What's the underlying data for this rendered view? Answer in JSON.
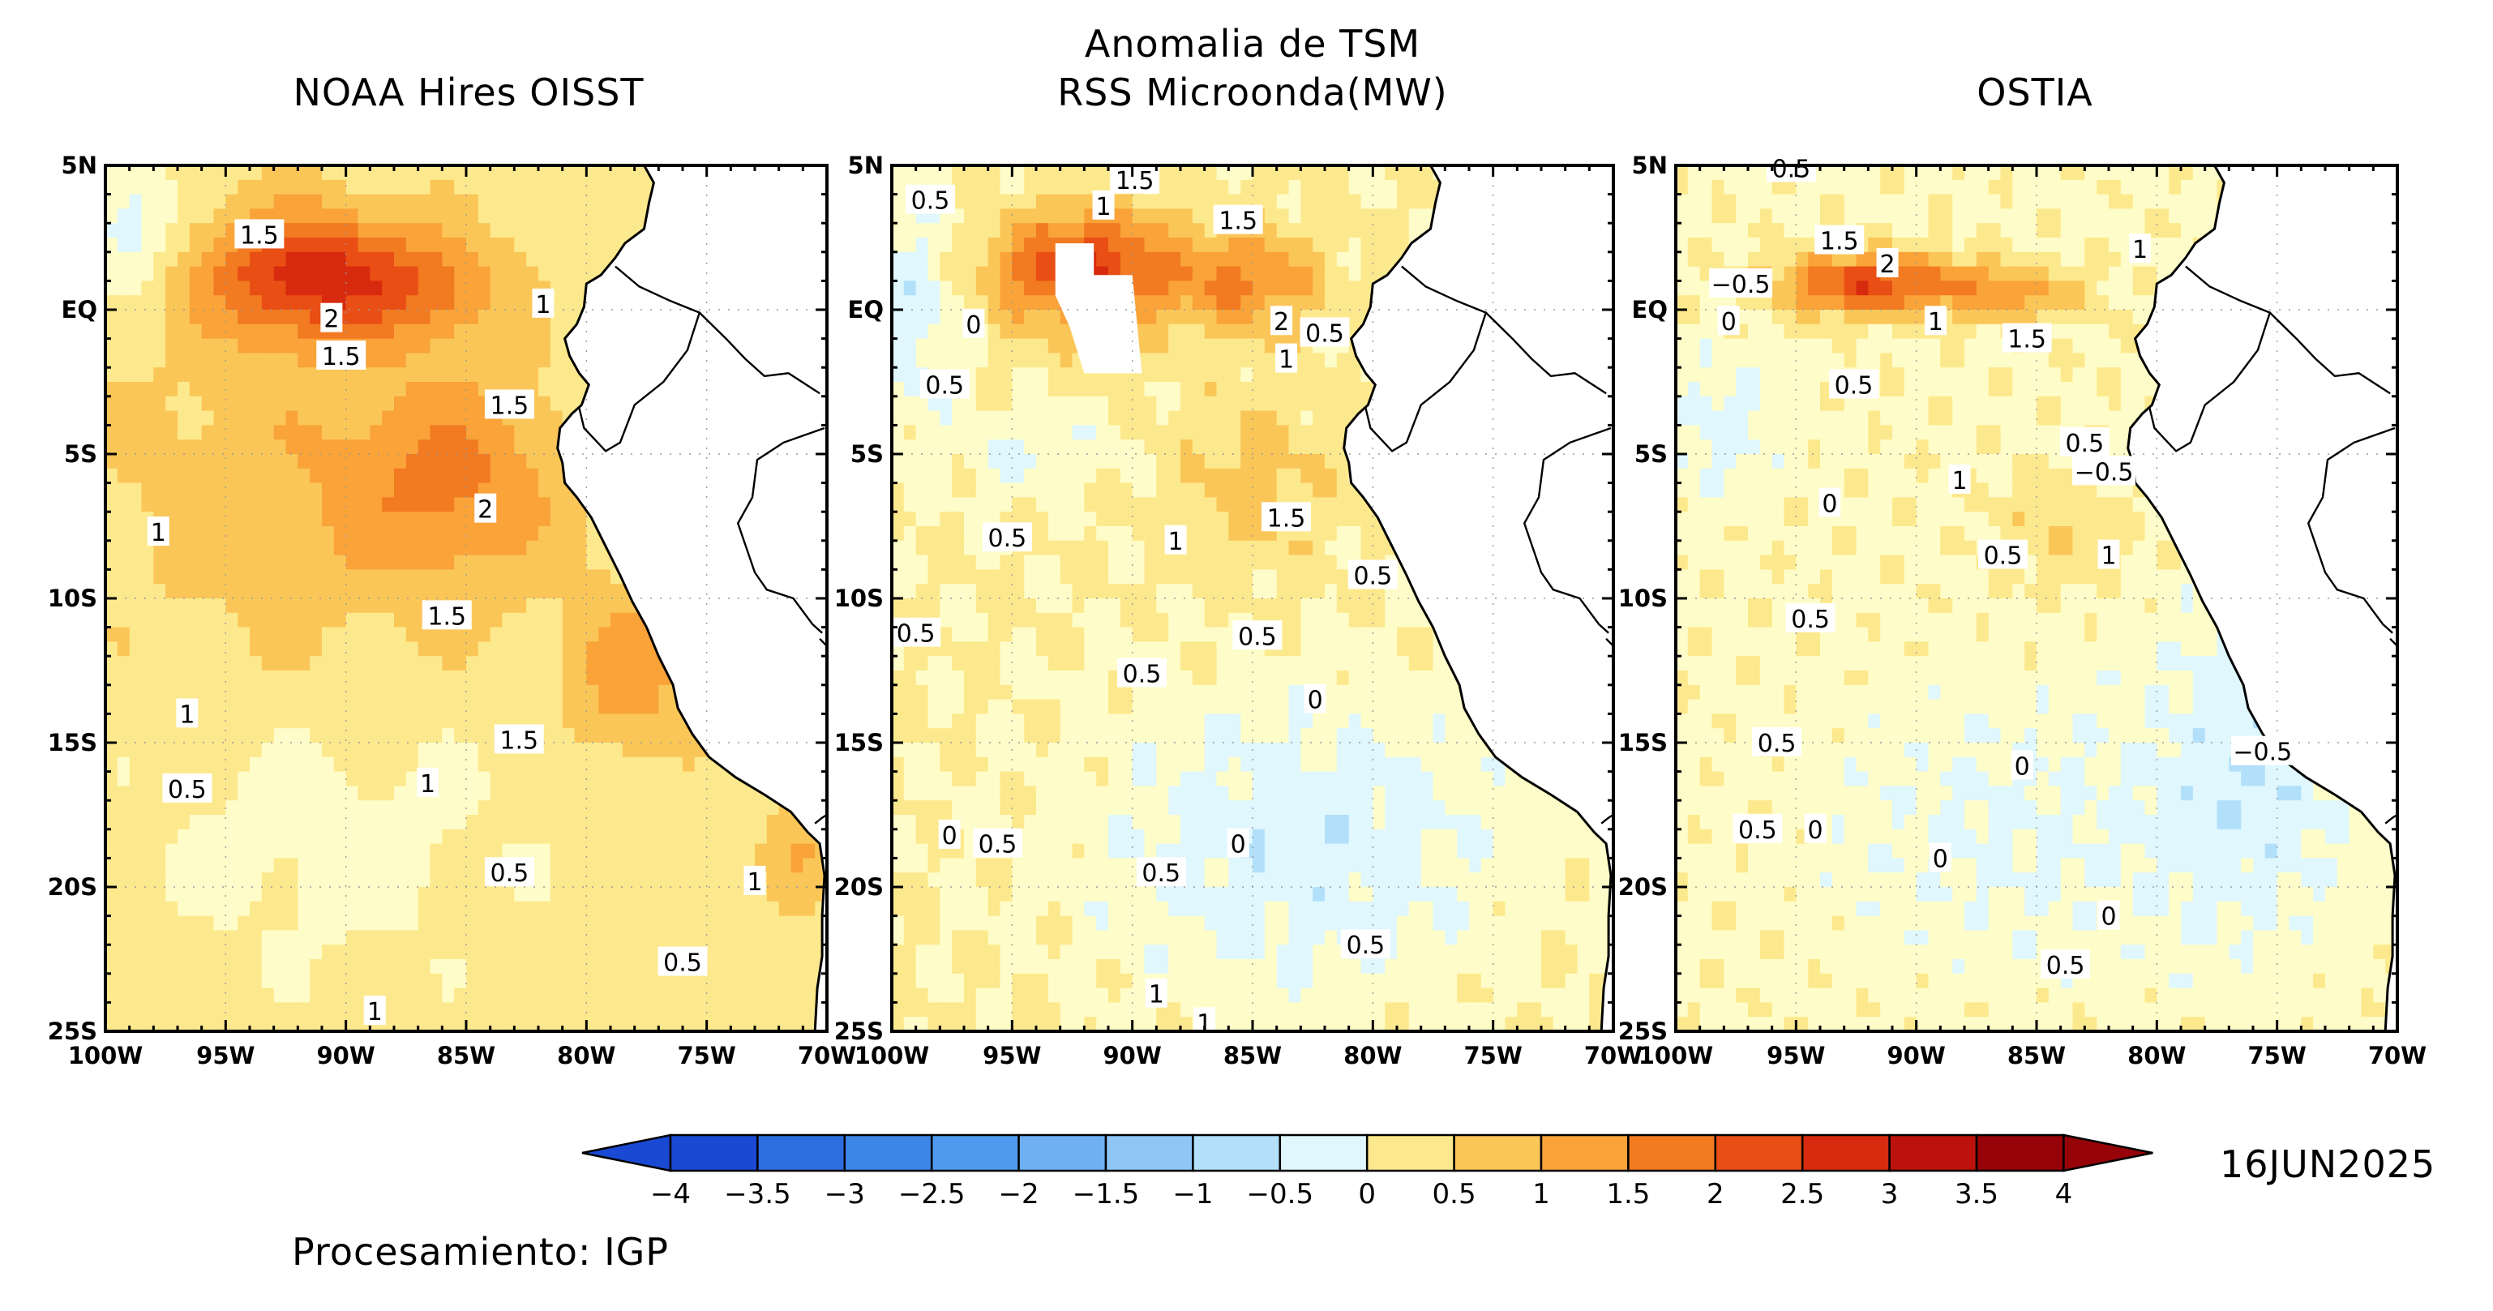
{
  "figure": {
    "main_title": "Anomalia de TSM",
    "date": "16JUN2025",
    "credit": "Procesamiento: IGP",
    "lat_ticks": [
      "5N",
      "EQ",
      "5S",
      "10S",
      "15S",
      "20S",
      "25S"
    ],
    "lon_ticks": [
      "100W",
      "95W",
      "90W",
      "85W",
      "80W",
      "75W",
      "70W"
    ]
  },
  "panels": [
    {
      "title": "NOAA Hires OISST",
      "labels": [
        {
          "t": "1.5",
          "lon": -93.6,
          "lat": 2.6
        },
        {
          "t": "2",
          "lon": -90.6,
          "lat": -0.3
        },
        {
          "t": "1.5",
          "lon": -90.2,
          "lat": -1.6
        },
        {
          "t": "1",
          "lon": -81.8,
          "lat": 0.2
        },
        {
          "t": "1.5",
          "lon": -83.2,
          "lat": -3.3
        },
        {
          "t": "2",
          "lon": -84.2,
          "lat": -6.9
        },
        {
          "t": "1",
          "lon": -97.8,
          "lat": -7.7
        },
        {
          "t": "1.5",
          "lon": -85.8,
          "lat": -10.6
        },
        {
          "t": "1",
          "lon": -96.6,
          "lat": -14.0
        },
        {
          "t": "1.5",
          "lon": -82.8,
          "lat": -14.9
        },
        {
          "t": "0.5",
          "lon": -96.6,
          "lat": -16.6
        },
        {
          "t": "1",
          "lon": -86.6,
          "lat": -16.4
        },
        {
          "t": "0.5",
          "lon": -83.2,
          "lat": -19.5
        },
        {
          "t": "1",
          "lon": -73.0,
          "lat": -19.8
        },
        {
          "t": "0.5",
          "lon": -76.0,
          "lat": -22.6
        },
        {
          "t": "1",
          "lon": -88.8,
          "lat": -24.3
        }
      ]
    },
    {
      "title": "RSS Microonda(MW)",
      "labels": [
        {
          "t": "1.5",
          "lon": -89.9,
          "lat": 4.5
        },
        {
          "t": "0.5",
          "lon": -98.4,
          "lat": 3.8
        },
        {
          "t": "1",
          "lon": -91.2,
          "lat": 3.6
        },
        {
          "t": "1.5",
          "lon": -85.6,
          "lat": 3.1
        },
        {
          "t": "0",
          "lon": -96.6,
          "lat": -0.5
        },
        {
          "t": "2",
          "lon": -83.8,
          "lat": -0.4
        },
        {
          "t": "0.5",
          "lon": -82.0,
          "lat": -0.8
        },
        {
          "t": "1",
          "lon": -83.6,
          "lat": -1.7
        },
        {
          "t": "0.5",
          "lon": -97.8,
          "lat": -2.6
        },
        {
          "t": "1.5",
          "lon": -83.6,
          "lat": -7.2
        },
        {
          "t": "0.5",
          "lon": -95.2,
          "lat": -7.9
        },
        {
          "t": "1",
          "lon": -88.2,
          "lat": -8.0
        },
        {
          "t": "0.5",
          "lon": -80.0,
          "lat": -9.2
        },
        {
          "t": "0.5",
          "lon": -99.0,
          "lat": -11.2
        },
        {
          "t": "0.5",
          "lon": -84.8,
          "lat": -11.3
        },
        {
          "t": "0.5",
          "lon": -89.6,
          "lat": -12.6
        },
        {
          "t": "0",
          "lon": -82.4,
          "lat": -13.5
        },
        {
          "t": "0",
          "lon": -97.6,
          "lat": -18.2
        },
        {
          "t": "0.5",
          "lon": -95.6,
          "lat": -18.5
        },
        {
          "t": "0",
          "lon": -85.6,
          "lat": -18.5
        },
        {
          "t": "0.5",
          "lon": -88.8,
          "lat": -19.5
        },
        {
          "t": "0.5",
          "lon": -80.3,
          "lat": -22.0
        },
        {
          "t": "1",
          "lon": -89.0,
          "lat": -23.7
        },
        {
          "t": "1",
          "lon": -87.0,
          "lat": -24.7
        }
      ]
    },
    {
      "title": "OSTIA",
      "labels": [
        {
          "t": "0.5",
          "lon": -95.2,
          "lat": 4.9
        },
        {
          "t": "1.5",
          "lon": -93.2,
          "lat": 2.4
        },
        {
          "t": "-0.5",
          "lon": -97.3,
          "lat": 0.9
        },
        {
          "t": "2",
          "lon": -91.2,
          "lat": 1.6
        },
        {
          "t": "1",
          "lon": -80.7,
          "lat": 2.1
        },
        {
          "t": "0",
          "lon": -97.8,
          "lat": -0.4
        },
        {
          "t": "1",
          "lon": -89.2,
          "lat": -0.4
        },
        {
          "t": "1.5",
          "lon": -85.4,
          "lat": -1.0
        },
        {
          "t": "0.5",
          "lon": -92.6,
          "lat": -2.6
        },
        {
          "t": "0.5",
          "lon": -83.0,
          "lat": -4.6
        },
        {
          "t": "-0.5",
          "lon": -82.2,
          "lat": -5.6
        },
        {
          "t": "1",
          "lon": -88.2,
          "lat": -5.9
        },
        {
          "t": "0",
          "lon": -93.6,
          "lat": -6.7
        },
        {
          "t": "0.5",
          "lon": -86.4,
          "lat": -8.5
        },
        {
          "t": "1",
          "lon": -82.0,
          "lat": -8.5
        },
        {
          "t": "0.5",
          "lon": -94.4,
          "lat": -10.7
        },
        {
          "t": "0.5",
          "lon": -95.8,
          "lat": -15.0
        },
        {
          "t": "0",
          "lon": -85.6,
          "lat": -15.8
        },
        {
          "t": "-0.5",
          "lon": -75.6,
          "lat": -15.3
        },
        {
          "t": "0.5",
          "lon": -96.6,
          "lat": -18.0
        },
        {
          "t": "0",
          "lon": -94.2,
          "lat": -18.0
        },
        {
          "t": "0",
          "lon": -89.0,
          "lat": -19.0
        },
        {
          "t": "0",
          "lon": -82.0,
          "lat": -21.0
        },
        {
          "t": "0.5",
          "lon": -83.8,
          "lat": -22.7
        }
      ]
    }
  ],
  "colorbar": {
    "tick_labels": [
      "-4",
      "-3.5",
      "-3",
      "-2.5",
      "-2",
      "-1.5",
      "-1",
      "-0.5",
      "0",
      "0.5",
      "1",
      "1.5",
      "2",
      "2.5",
      "3",
      "3.5",
      "4"
    ],
    "colors": [
      "#1a4ad4",
      "#2c6ee0",
      "#3c86e8",
      "#4f9aee",
      "#6fb0f3",
      "#8ec6f7",
      "#b2e0fb",
      "#dff7fd",
      "#fefcc8",
      "#fde98d",
      "#fbc658",
      "#f9a339",
      "#f27a20",
      "#e94e14",
      "#d72a0e",
      "#bc120c",
      "#96040a"
    ]
  }
}
